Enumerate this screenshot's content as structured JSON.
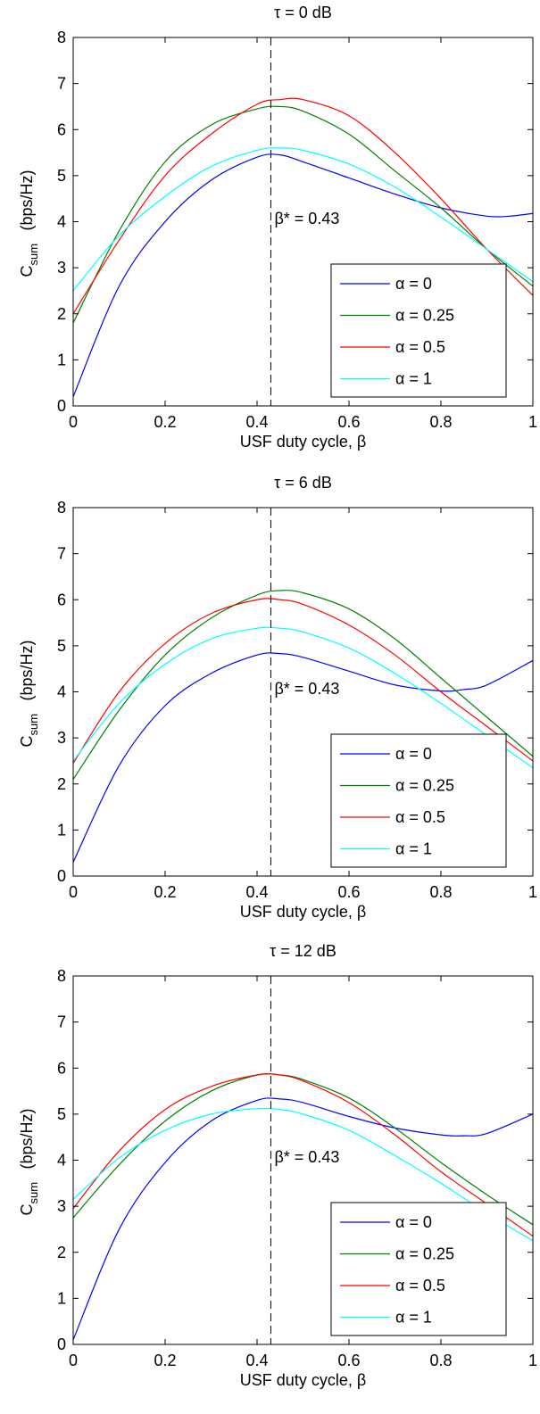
{
  "chart_data": [
    {
      "type": "line",
      "title": "τ = 0 dB",
      "xlabel": "USF duty cycle, β",
      "ylabel_main": "C",
      "ylabel_sub": "sum",
      "ylabel_unit": "(bps/Hz)",
      "xlim": [
        0,
        1
      ],
      "ylim": [
        0,
        8
      ],
      "xticks": [
        "0",
        "0.2",
        "0.4",
        "0.6",
        "0.8",
        "1"
      ],
      "yticks": [
        "0",
        "1",
        "2",
        "3",
        "4",
        "5",
        "6",
        "7",
        "8"
      ],
      "grid": false,
      "legend_position": "bottom-right",
      "annotation": "β* = 0.43",
      "vline_x": 0.43,
      "series": [
        {
          "name": "α = 0",
          "color": "#0000ff",
          "x": [
            0,
            0.1,
            0.2,
            0.3,
            0.4,
            0.45,
            0.5,
            0.6,
            0.7,
            0.8,
            0.9,
            0.95,
            1
          ],
          "y": [
            0.2,
            2.6,
            4.0,
            4.9,
            5.4,
            5.45,
            5.3,
            4.95,
            4.6,
            4.3,
            4.12,
            4.12,
            4.18
          ]
        },
        {
          "name": "α = 0.25",
          "color": "#008000",
          "x": [
            0,
            0.1,
            0.2,
            0.3,
            0.4,
            0.45,
            0.5,
            0.6,
            0.7,
            0.8,
            0.9,
            1
          ],
          "y": [
            1.8,
            3.8,
            5.3,
            6.1,
            6.45,
            6.5,
            6.4,
            5.9,
            5.1,
            4.3,
            3.4,
            2.6
          ]
        },
        {
          "name": "α = 0.5",
          "color": "#ff0000",
          "x": [
            0,
            0.1,
            0.2,
            0.3,
            0.4,
            0.45,
            0.5,
            0.6,
            0.7,
            0.8,
            0.9,
            1
          ],
          "y": [
            2.0,
            3.6,
            5.0,
            5.9,
            6.55,
            6.65,
            6.65,
            6.3,
            5.5,
            4.5,
            3.4,
            2.4
          ]
        },
        {
          "name": "α = 1",
          "color": "#00ffff",
          "x": [
            0,
            0.1,
            0.2,
            0.3,
            0.4,
            0.45,
            0.5,
            0.6,
            0.7,
            0.8,
            0.9,
            1
          ],
          "y": [
            2.5,
            3.7,
            4.55,
            5.2,
            5.55,
            5.6,
            5.55,
            5.25,
            4.75,
            4.1,
            3.4,
            2.7
          ]
        }
      ]
    },
    {
      "type": "line",
      "title": "τ = 6 dB",
      "xlabel": "USF duty cycle, β",
      "ylabel_main": "C",
      "ylabel_sub": "sum",
      "ylabel_unit": "(bps/Hz)",
      "xlim": [
        0,
        1
      ],
      "ylim": [
        0,
        8
      ],
      "xticks": [
        "0",
        "0.2",
        "0.4",
        "0.6",
        "0.8",
        "1"
      ],
      "yticks": [
        "0",
        "1",
        "2",
        "3",
        "4",
        "5",
        "6",
        "7",
        "8"
      ],
      "grid": false,
      "legend_position": "bottom-right",
      "annotation": "β* = 0.43",
      "vline_x": 0.43,
      "series": [
        {
          "name": "α = 0",
          "color": "#0000ff",
          "x": [
            0,
            0.1,
            0.2,
            0.3,
            0.4,
            0.45,
            0.5,
            0.6,
            0.7,
            0.8,
            0.85,
            0.9,
            1
          ],
          "y": [
            0.3,
            2.4,
            3.7,
            4.4,
            4.8,
            4.83,
            4.75,
            4.45,
            4.15,
            4.02,
            4.05,
            4.15,
            4.68
          ]
        },
        {
          "name": "α = 0.25",
          "color": "#008000",
          "x": [
            0,
            0.1,
            0.2,
            0.3,
            0.4,
            0.45,
            0.5,
            0.6,
            0.7,
            0.8,
            0.9,
            1
          ],
          "y": [
            2.1,
            3.6,
            4.8,
            5.6,
            6.1,
            6.2,
            6.15,
            5.8,
            5.15,
            4.3,
            3.45,
            2.6
          ]
        },
        {
          "name": "α = 0.5",
          "color": "#ff0000",
          "x": [
            0,
            0.1,
            0.2,
            0.3,
            0.4,
            0.45,
            0.5,
            0.6,
            0.7,
            0.8,
            0.9,
            1
          ],
          "y": [
            2.45,
            4.0,
            5.05,
            5.7,
            6.0,
            6.0,
            5.9,
            5.45,
            4.8,
            4.0,
            3.25,
            2.5
          ]
        },
        {
          "name": "α = 1",
          "color": "#00ffff",
          "x": [
            0,
            0.1,
            0.2,
            0.3,
            0.4,
            0.45,
            0.5,
            0.6,
            0.7,
            0.8,
            0.9,
            1
          ],
          "y": [
            2.5,
            3.75,
            4.6,
            5.15,
            5.38,
            5.38,
            5.3,
            4.95,
            4.4,
            3.75,
            3.05,
            2.35
          ]
        }
      ]
    },
    {
      "type": "line",
      "title": "τ = 12 dB",
      "xlabel": "USF duty cycle, β",
      "ylabel_main": "C",
      "ylabel_sub": "sum",
      "ylabel_unit": "(bps/Hz)",
      "xlim": [
        0,
        1
      ],
      "ylim": [
        0,
        8
      ],
      "xticks": [
        "0",
        "0.2",
        "0.4",
        "0.6",
        "0.8",
        "1"
      ],
      "yticks": [
        "0",
        "1",
        "2",
        "3",
        "4",
        "5",
        "6",
        "7",
        "8"
      ],
      "grid": false,
      "legend_position": "bottom-right",
      "annotation": "β* = 0.43",
      "vline_x": 0.43,
      "series": [
        {
          "name": "α = 0",
          "color": "#0000ff",
          "x": [
            0,
            0.1,
            0.2,
            0.3,
            0.4,
            0.45,
            0.5,
            0.6,
            0.7,
            0.8,
            0.85,
            0.9,
            1
          ],
          "y": [
            0.1,
            2.5,
            3.95,
            4.85,
            5.3,
            5.33,
            5.25,
            4.95,
            4.7,
            4.55,
            4.53,
            4.58,
            5.0
          ]
        },
        {
          "name": "α = 0.25",
          "color": "#008000",
          "x": [
            0,
            0.1,
            0.2,
            0.3,
            0.4,
            0.45,
            0.5,
            0.6,
            0.7,
            0.8,
            0.9,
            1
          ],
          "y": [
            2.75,
            3.9,
            4.85,
            5.5,
            5.85,
            5.85,
            5.75,
            5.35,
            4.7,
            3.95,
            3.25,
            2.6
          ]
        },
        {
          "name": "α = 0.5",
          "color": "#ff0000",
          "x": [
            0,
            0.1,
            0.2,
            0.3,
            0.4,
            0.45,
            0.5,
            0.6,
            0.7,
            0.8,
            0.9,
            1
          ],
          "y": [
            2.95,
            4.2,
            5.1,
            5.6,
            5.85,
            5.85,
            5.72,
            5.25,
            4.55,
            3.75,
            3.05,
            2.35
          ]
        },
        {
          "name": "α = 1",
          "color": "#00ffff",
          "x": [
            0,
            0.1,
            0.2,
            0.3,
            0.4,
            0.45,
            0.5,
            0.6,
            0.7,
            0.8,
            0.9,
            1
          ],
          "y": [
            3.15,
            4.05,
            4.65,
            5.0,
            5.12,
            5.1,
            5.0,
            4.65,
            4.1,
            3.5,
            2.85,
            2.25
          ]
        }
      ]
    }
  ]
}
